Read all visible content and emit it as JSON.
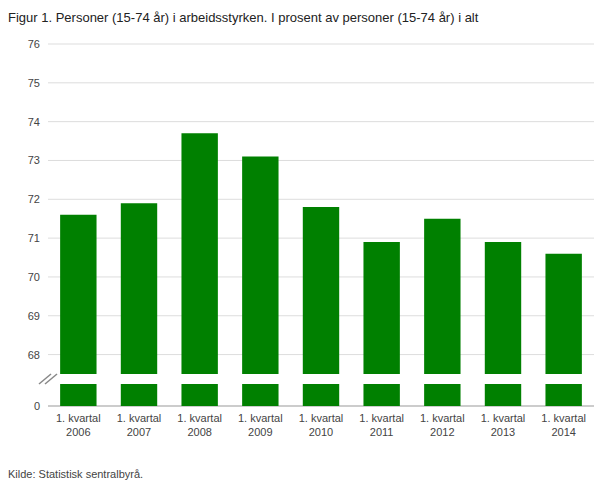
{
  "chart_data": {
    "type": "bar",
    "title": "Figur 1. Personer (15-74 år) i arbeidsstyrken. I prosent av personer (15-74 år) i alt",
    "source": "Kilde: Statistisk sentralbyrå.",
    "categories": [
      "1. kvartal\n2006",
      "1. kvartal\n2007",
      "1. kvartal\n2008",
      "1. kvartal\n2009",
      "1. kvartal\n2010",
      "1. kvartal\n2011",
      "1. kvartal\n2012",
      "1. kvartal\n2013",
      "1. kvartal\n2014"
    ],
    "values": [
      71.6,
      71.9,
      73.7,
      73.1,
      71.8,
      70.9,
      71.5,
      70.9,
      70.6
    ],
    "color": "#008000",
    "ylim": [
      0,
      76
    ],
    "yticks": [
      0,
      68,
      69,
      70,
      71,
      72,
      73,
      74,
      75,
      76
    ],
    "grid": true
  }
}
